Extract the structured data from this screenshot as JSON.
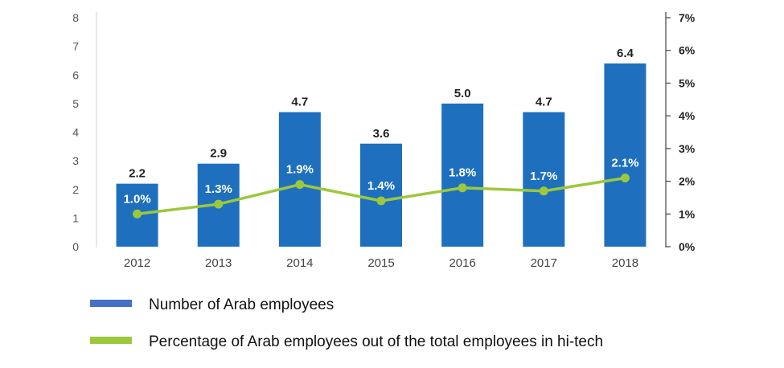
{
  "chart_data": {
    "type": "bar",
    "categories": [
      "2012",
      "2013",
      "2014",
      "2015",
      "2016",
      "2017",
      "2018"
    ],
    "series": [
      {
        "name": "Number of Arab employees",
        "type": "bar",
        "axis": "left",
        "color": "#1E70BF",
        "values": [
          2.2,
          2.9,
          4.7,
          3.6,
          5.0,
          4.7,
          6.4
        ],
        "labels": [
          "2.2",
          "2.9",
          "4.7",
          "3.6",
          "5.0",
          "4.7",
          "6.4"
        ]
      },
      {
        "name": "Percentage of Arab employees out of the total employees in hi-tech",
        "type": "line",
        "axis": "right",
        "color": "#9CC83C",
        "values": [
          1.0,
          1.3,
          1.9,
          1.4,
          1.8,
          1.7,
          2.1
        ],
        "labels": [
          "1.0%",
          "1.3%",
          "1.9%",
          "1.4%",
          "1.8%",
          "1.7%",
          "2.1%"
        ]
      }
    ],
    "ylim_left": [
      0,
      8
    ],
    "yticks_left": [
      "0",
      "1",
      "2",
      "3",
      "4",
      "5",
      "6",
      "7",
      "8"
    ],
    "ylim_right": [
      0,
      7
    ],
    "yticks_right": [
      "0%",
      "1%",
      "2%",
      "3%",
      "4%",
      "5%",
      "6%",
      "7%"
    ],
    "title": "",
    "xlabel": "",
    "ylabel": "",
    "grid": false,
    "legend": {
      "placement": "bottom",
      "items": [
        {
          "label": "Number of Arab employees",
          "color": "#4472C4"
        },
        {
          "label": "Percentage of Arab employees out of the total employees in hi-tech",
          "color": "#9CC83C"
        }
      ]
    }
  }
}
